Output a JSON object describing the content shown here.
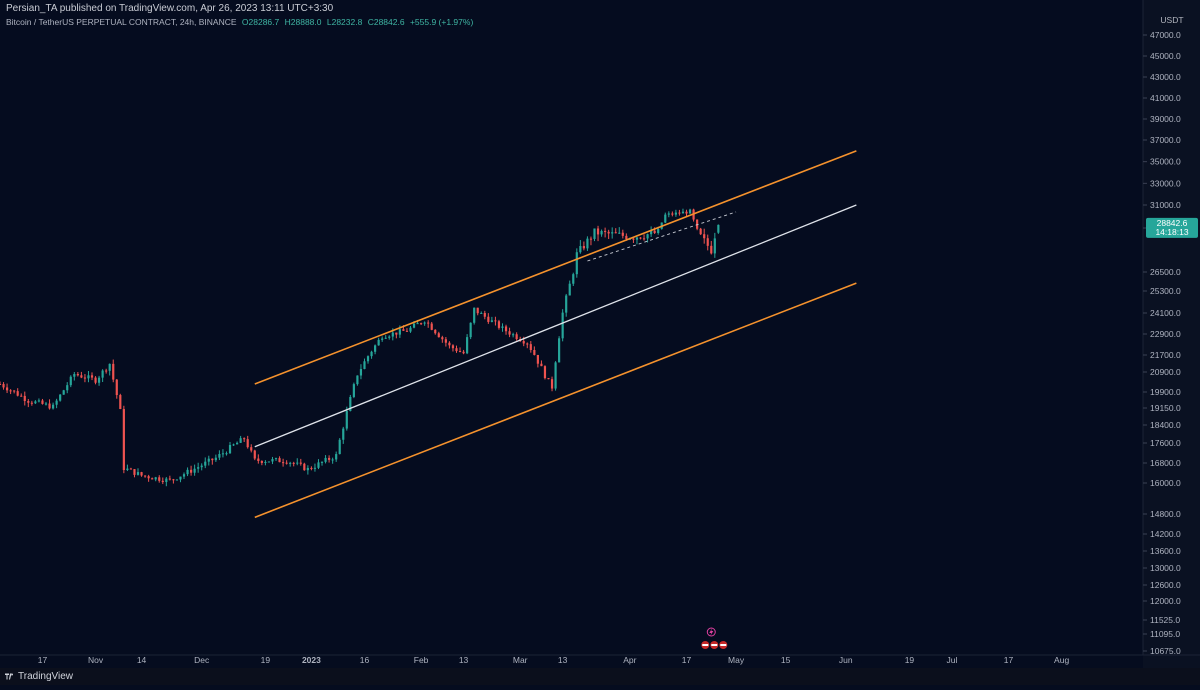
{
  "header": {
    "publisher_line": "Persian_TA published on TradingView.com, Apr 26, 2023 13:11 UTC+3:30",
    "symbol": "Bitcoin / TetherUS PERPETUAL CONTRACT, 24h, BINANCE",
    "open": "O28286.7",
    "high": "H28888.0",
    "low": "L28232.8",
    "close": "C28842.6",
    "change": "+555.9 (+1.97%)"
  },
  "footer": {
    "brand": "TradingView"
  },
  "price_axis": {
    "currency": "USDT",
    "last_price": "28842.6",
    "countdown": "14:18:13",
    "ticks": [
      "47000.0",
      "45000.0",
      "43000.0",
      "41000.0",
      "39000.0",
      "37000.0",
      "35000.0",
      "33000.0",
      "31000.0",
      "28500.0",
      "26500.0",
      "25300.0",
      "24100.0",
      "22900.0",
      "21700.0",
      "20900.0",
      "19900.0",
      "19150.0",
      "18400.0",
      "17600.0",
      "16800.0",
      "16000.0",
      "14800.0",
      "14200.0",
      "13600.0",
      "13000.0",
      "12600.0",
      "12000.0",
      "11525.0",
      "11095.0",
      "10675.0"
    ]
  },
  "time_axis": {
    "labels": [
      "17",
      "Nov",
      "14",
      "Dec",
      "19",
      "2023",
      "16",
      "Feb",
      "13",
      "Mar",
      "13",
      "Apr",
      "17",
      "May",
      "15",
      "Jun",
      "19",
      "Jul",
      "17",
      "Aug"
    ]
  },
  "colors": {
    "background": "#050c1f",
    "up": "#26a69a",
    "down": "#ef5350",
    "channel_outer": "#f5922d",
    "channel_mid": "#dfe3ea",
    "dashed": "#c9ccd4",
    "last_price_bg": "#26a69a"
  },
  "chart_data": {
    "type": "candlestick",
    "title": "Bitcoin / TetherUS PERPETUAL CONTRACT, 24h, BINANCE",
    "timeframe": "24h",
    "x_range": [
      "2022-10-05",
      "2023-08-24"
    ],
    "y_scale": "log",
    "y_range": [
      10500,
      48500
    ],
    "anchors": [
      [
        "2022-10-05",
        20300
      ],
      [
        "2022-10-13",
        19500
      ],
      [
        "2022-10-20",
        19200
      ],
      [
        "2022-10-26",
        20800
      ],
      [
        "2022-11-01",
        20500
      ],
      [
        "2022-11-05",
        21300
      ],
      [
        "2022-11-08",
        19000
      ],
      [
        "2022-11-09",
        16600
      ],
      [
        "2022-11-14",
        16300
      ],
      [
        "2022-11-22",
        16100
      ],
      [
        "2022-11-28",
        16500
      ],
      [
        "2022-12-05",
        17000
      ],
      [
        "2022-12-13",
        17800
      ],
      [
        "2022-12-16",
        16900
      ],
      [
        "2022-12-25",
        16900
      ],
      [
        "2022-12-31",
        16550
      ],
      [
        "2023-01-08",
        17100
      ],
      [
        "2023-01-14",
        20800
      ],
      [
        "2023-01-21",
        22800
      ],
      [
        "2023-01-28",
        23100
      ],
      [
        "2023-02-02",
        23700
      ],
      [
        "2023-02-09",
        22200
      ],
      [
        "2023-02-13",
        21800
      ],
      [
        "2023-02-16",
        24300
      ],
      [
        "2023-02-24",
        23200
      ],
      [
        "2023-03-03",
        22400
      ],
      [
        "2023-03-09",
        20400
      ],
      [
        "2023-03-10",
        20150
      ],
      [
        "2023-03-13",
        24100
      ],
      [
        "2023-03-17",
        27300
      ],
      [
        "2023-03-22",
        28300
      ],
      [
        "2023-04-02",
        28100
      ],
      [
        "2023-04-09",
        28300
      ],
      [
        "2023-04-11",
        29900
      ],
      [
        "2023-04-18",
        30300
      ],
      [
        "2023-04-20",
        28300
      ],
      [
        "2023-04-24",
        27500
      ],
      [
        "2023-04-26",
        28842.6
      ]
    ],
    "last_candle": {
      "open": 28286.7,
      "high": 28888.0,
      "low": 28232.8,
      "close": 28842.6
    },
    "channel": {
      "upper": [
        [
          "2022-12-16",
          20300
        ],
        [
          "2023-06-04",
          36000
        ]
      ],
      "middle": [
        [
          "2022-12-16",
          17450
        ],
        [
          "2023-06-04",
          31000
        ]
      ],
      "lower": [
        [
          "2022-12-16",
          14700
        ],
        [
          "2023-06-04",
          25800
        ]
      ]
    },
    "dashed_line": [
      [
        "2023-03-20",
        27000
      ],
      [
        "2023-05-01",
        30250
      ]
    ]
  }
}
